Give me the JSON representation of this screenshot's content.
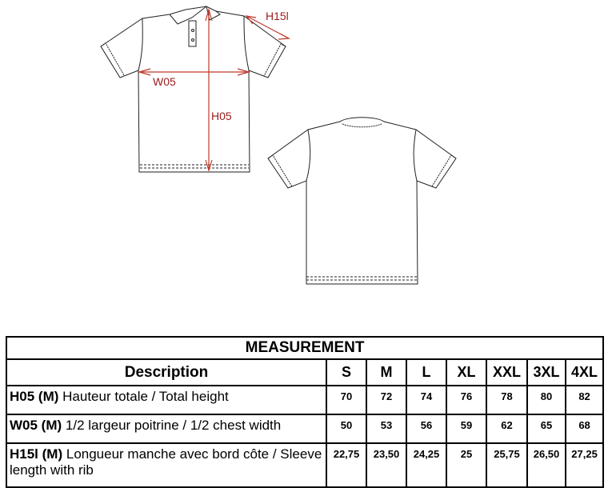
{
  "diagram": {
    "labels": {
      "height": "H05",
      "width": "W05",
      "sleeve": "H15l"
    },
    "colors": {
      "measure": "#c0392b",
      "outline": "#222222"
    }
  },
  "table": {
    "title": "MEASUREMENT",
    "description_header": "Description",
    "sizes": [
      "S",
      "M",
      "L",
      "XL",
      "XXL",
      "3XL",
      "4XL"
    ],
    "rows": [
      {
        "code": "H05 (M)",
        "text": "Hauteur totale / Total height",
        "values": [
          "70",
          "72",
          "74",
          "76",
          "78",
          "80",
          "82"
        ]
      },
      {
        "code": "W05 (M)",
        "text": "1/2 largeur poitrine / 1/2 chest width",
        "values": [
          "50",
          "53",
          "56",
          "59",
          "62",
          "65",
          "68"
        ]
      },
      {
        "code": "H15l (M)",
        "text": "Longueur manche avec bord côte / Sleeve length with rib",
        "values": [
          "22,75",
          "23,50",
          "24,25",
          "25",
          "25,75",
          "26,50",
          "27,25"
        ]
      }
    ]
  }
}
